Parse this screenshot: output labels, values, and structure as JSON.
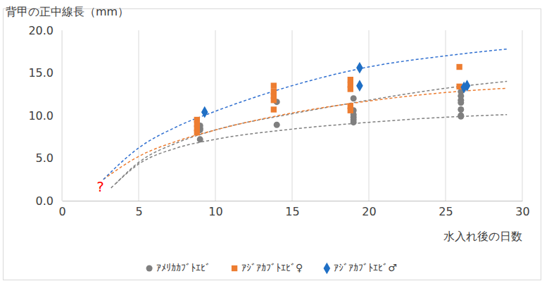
{
  "chart_data": {
    "type": "scatter",
    "y_label": "背甲の正中線長（mm）",
    "x_label": "水入れ後の日数",
    "xlim": [
      0,
      30
    ],
    "xticks": [
      0,
      5,
      10,
      15,
      20,
      25,
      30
    ],
    "ylim": [
      0,
      20
    ],
    "yticks": [
      {
        "value": 0,
        "label": "0.0"
      },
      {
        "value": 5,
        "label": "5.0"
      },
      {
        "value": 10,
        "label": "10.0"
      },
      {
        "value": 15,
        "label": "15.0"
      },
      {
        "value": 20,
        "label": "20.0"
      }
    ],
    "grid": "x",
    "legend": "bottom",
    "annotations": [
      {
        "text": "?",
        "x": 2.5,
        "y": 1.5,
        "color": "#ff0000"
      }
    ],
    "series": [
      {
        "name": "ｱﾒﾘｶｶﾌﾞﾄｴﾋﾞ",
        "type": "scatter",
        "marker": "circle",
        "color": "#7f7f7f",
        "x": [
          9,
          9,
          9,
          9,
          14,
          14,
          19,
          19,
          19,
          19,
          19,
          19,
          26,
          26,
          26,
          26,
          26,
          26,
          26
        ],
        "values": [
          8.8,
          8.5,
          8.3,
          7.2,
          11.6,
          8.9,
          12.0,
          10.6,
          10.1,
          9.8,
          9.5,
          9.2,
          12.8,
          12.3,
          11.8,
          11.5,
          10.7,
          10.0,
          9.9
        ]
      },
      {
        "name": "ｱｼﾞｱｶﾌﾞﾄｴﾋﾞ♀",
        "type": "scatter",
        "marker": "square",
        "color": "#ed7d31",
        "x": [
          8.8,
          8.8,
          8.8,
          8.8,
          13.8,
          13.8,
          13.8,
          13.8,
          13.8,
          18.8,
          18.8,
          18.8,
          18.8,
          18.8,
          25.9,
          25.9
        ],
        "values": [
          9.5,
          9.0,
          8.5,
          8.0,
          13.5,
          12.8,
          12.3,
          11.8,
          10.7,
          14.2,
          13.6,
          13.1,
          11.1,
          10.6,
          15.7,
          13.4
        ]
      },
      {
        "name": "ｱｼﾞｱｶﾌﾞﾄｴﾋﾞ♂",
        "type": "scatter",
        "marker": "diamond",
        "color": "#1f6fc5",
        "x": [
          9.3,
          19.4,
          19.4,
          26.4,
          26.2
        ],
        "values": [
          10.4,
          15.6,
          13.5,
          13.5,
          13.3
        ]
      },
      {
        "type": "line",
        "line_style": "dashed",
        "color": "#7f7f7f",
        "x": [
          3.2,
          5,
          7.5,
          10,
          15,
          20,
          25,
          29
        ],
        "values": [
          1.5,
          4.3,
          6.2,
          7.2,
          8.4,
          9.2,
          9.8,
          10.1
        ]
      },
      {
        "type": "line",
        "line_style": "dashed",
        "color": "#7f7f7f",
        "x": [
          3.5,
          5,
          7.5,
          10,
          15,
          20,
          25,
          29
        ],
        "values": [
          2.0,
          4.5,
          6.8,
          8.3,
          10.2,
          11.8,
          13.2,
          14.0
        ]
      },
      {
        "type": "line",
        "line_style": "dashed",
        "color": "#ed7d31",
        "x": [
          2.7,
          5,
          7.5,
          10,
          15,
          20,
          25,
          29
        ],
        "values": [
          2.5,
          5.2,
          7.0,
          8.3,
          10.3,
          11.7,
          12.7,
          13.2
        ]
      },
      {
        "type": "line",
        "line_style": "dashed",
        "color": "#2f6fd0",
        "x": [
          2.7,
          5,
          7.5,
          10,
          15,
          20,
          25,
          29
        ],
        "values": [
          2.5,
          6.2,
          8.7,
          10.5,
          13.5,
          15.7,
          17.0,
          17.8
        ]
      }
    ]
  }
}
